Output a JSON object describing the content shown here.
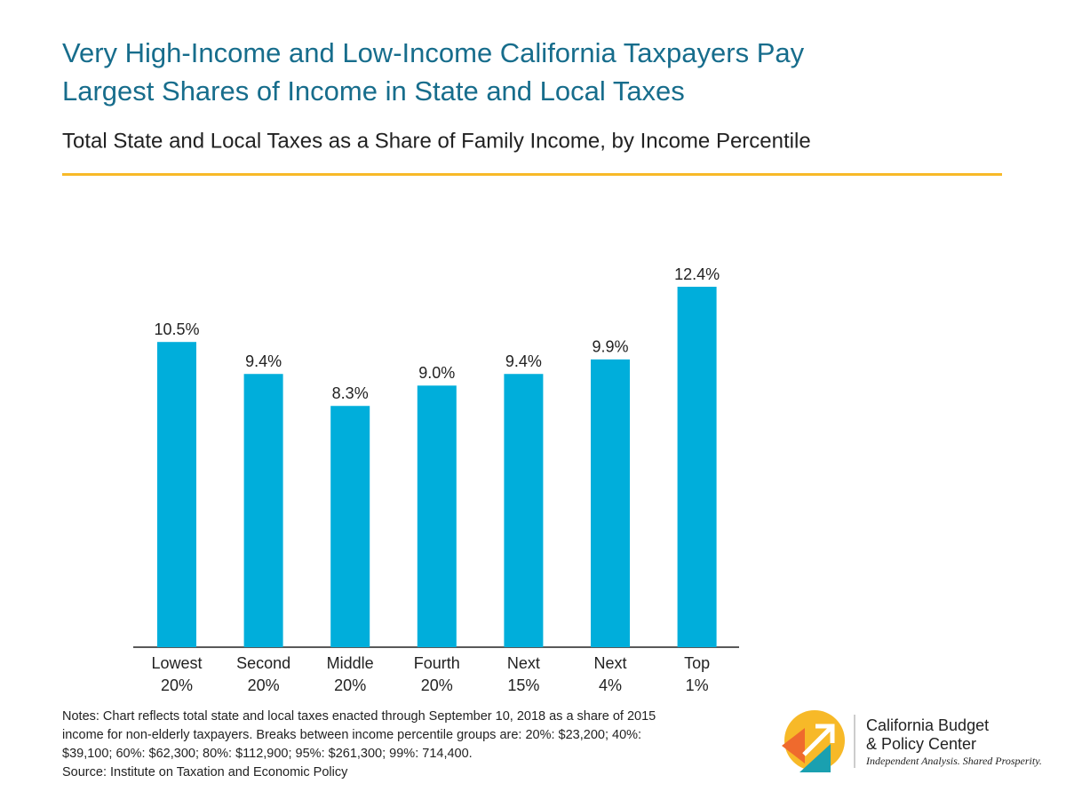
{
  "chart_data": {
    "type": "bar",
    "title": [
      "Very High-Income and Low-Income California Taxpayers Pay",
      "Largest Shares of Income in State and Local Taxes"
    ],
    "subtitle": "Total State and Local Taxes as a Share of Family Income, by Income Percentile",
    "categories": [
      [
        "Lowest",
        "20%"
      ],
      [
        "Second",
        "20%"
      ],
      [
        "Middle",
        "20%"
      ],
      [
        "Fourth",
        "20%"
      ],
      [
        "Next",
        "15%"
      ],
      [
        "Next",
        "4%"
      ],
      [
        "Top",
        "1%"
      ]
    ],
    "values": [
      10.5,
      9.4,
      8.3,
      9.0,
      9.4,
      9.9,
      12.4
    ],
    "value_labels": [
      "10.5%",
      "9.4%",
      "8.3%",
      "9.0%",
      "9.4%",
      "9.9%",
      "12.4%"
    ],
    "color": "#00aedb",
    "notes": [
      "Notes: Chart reflects total state and local taxes enacted through September 10, 2018 as a share of 2015",
      "income for non-elderly taxpayers. Breaks between income percentile groups are: 20%: $23,200; 40%:",
      "$39,100; 60%: $62,300; 80%: $112,900; 95%: $261,300; 99%: 714,400.",
      "Source: Institute on Taxation and Economic Policy"
    ]
  },
  "logo": {
    "name": [
      "California Budget",
      "& Policy Center"
    ],
    "tagline": "Independent Analysis. Shared Prosperity."
  }
}
